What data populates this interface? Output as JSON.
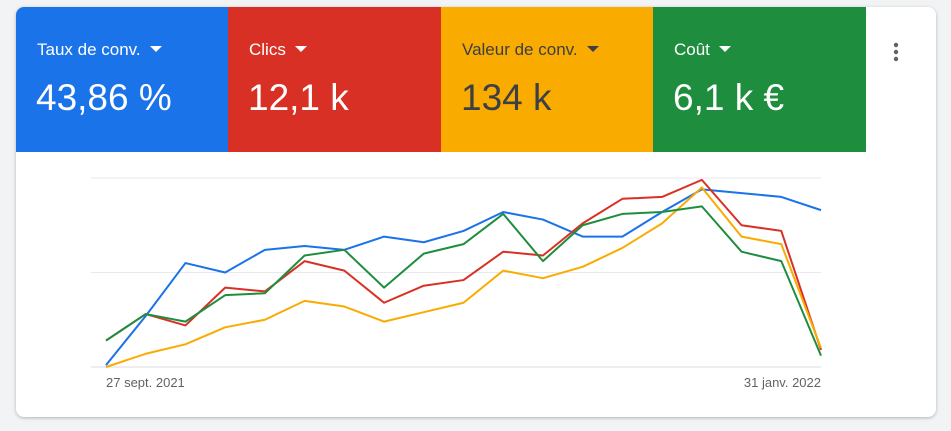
{
  "metrics": [
    {
      "label": "Taux de conv.",
      "value": "43,86 %",
      "color": "#1a73e8",
      "text": "#ffffff"
    },
    {
      "label": "Clics",
      "value": "12,1 k",
      "color": "#d93025",
      "text": "#ffffff"
    },
    {
      "label": "Valeur de conv.",
      "value": "134 k",
      "color": "#f9ab00",
      "text": "#3c4043"
    },
    {
      "label": "Coût",
      "value": "6,1 k €",
      "color": "#1e8e3e",
      "text": "#ffffff"
    }
  ],
  "chart_data": {
    "type": "line",
    "categories": [
      "27 sept. 2021",
      null,
      null,
      null,
      null,
      null,
      null,
      null,
      null,
      null,
      null,
      null,
      null,
      null,
      null,
      null,
      null,
      null,
      "31 janv. 2022"
    ],
    "ylim": [
      0,
      100
    ],
    "yticks": [
      0,
      50,
      100
    ],
    "grid": true,
    "series": [
      {
        "color": "#1a73e8",
        "values": [
          1,
          27,
          55,
          50,
          62,
          64,
          62,
          69,
          66,
          72,
          82,
          78,
          69,
          69,
          82,
          94,
          92,
          90,
          83
        ]
      },
      {
        "color": "#d93025",
        "values": [
          14,
          28,
          22,
          42,
          40,
          56,
          51,
          34,
          43,
          46,
          61,
          59,
          76,
          89,
          90,
          99,
          75,
          72,
          9
        ]
      },
      {
        "color": "#f9ab00",
        "values": [
          0,
          7,
          12,
          21,
          25,
          35,
          32,
          24,
          29,
          34,
          51,
          47,
          53,
          63,
          76,
          95,
          69,
          65,
          10
        ]
      },
      {
        "color": "#1e8e3e",
        "values": [
          14,
          28,
          24,
          38,
          39,
          59,
          62,
          42,
          60,
          65,
          81,
          56,
          75,
          81,
          82,
          85,
          61,
          56,
          6
        ]
      }
    ]
  }
}
